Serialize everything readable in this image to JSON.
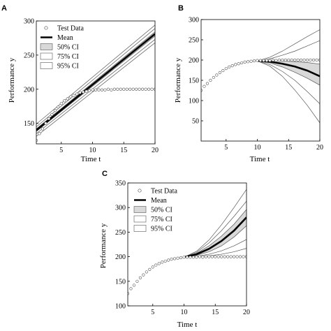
{
  "chart_data": [
    {
      "panel": "A",
      "type": "line",
      "xlabel": "Time t",
      "ylabel": "Performance y",
      "xlim": [
        1,
        20
      ],
      "ylim": [
        120,
        300
      ],
      "xticks": [
        5,
        10,
        15,
        20
      ],
      "yticks": [
        150,
        200,
        250,
        300
      ],
      "legend": {
        "placement": "top-left",
        "entries": [
          "Test Data",
          "Mean",
          "50% CI",
          "75% CI",
          "95% CI"
        ]
      },
      "test_data": {
        "x": [
          1,
          1.5,
          2,
          2.5,
          3,
          3.5,
          4,
          4.5,
          5,
          5.5,
          6,
          6.5,
          7,
          7.5,
          8,
          8.5,
          9,
          9.5,
          10,
          10.5,
          11,
          11.5,
          12,
          12.5,
          13,
          13.5,
          14,
          14.5,
          15,
          15.5,
          16,
          16.5,
          17,
          17.5,
          18,
          18.5,
          19,
          19.5,
          20
        ],
        "y": [
          125,
          135,
          142,
          150,
          157,
          163,
          169,
          174,
          179,
          183,
          186,
          189,
          191,
          193,
          195,
          196,
          197,
          198,
          199,
          199,
          199,
          199,
          199,
          200,
          199,
          200,
          200,
          200,
          200,
          200,
          200,
          200,
          200,
          200,
          200,
          200,
          200,
          200,
          200
        ]
      },
      "mean": {
        "x": [
          1,
          20
        ],
        "y": [
          140,
          281
        ]
      },
      "ci": [
        {
          "name": "50% CI",
          "x": [
            1,
            20
          ],
          "lower": [
            138,
            278
          ],
          "upper": [
            142,
            284
          ]
        },
        {
          "name": "75% CI",
          "x": [
            1,
            20
          ],
          "lower": [
            135,
            273
          ],
          "upper": [
            145,
            289
          ]
        },
        {
          "name": "95% CI",
          "x": [
            1,
            20
          ],
          "lower": [
            131,
            268
          ],
          "upper": [
            149,
            294
          ]
        }
      ]
    },
    {
      "panel": "B",
      "type": "line",
      "xlabel": "Time t",
      "ylabel": "Performance y",
      "xlim": [
        1,
        20
      ],
      "ylim": [
        0,
        300
      ],
      "xticks": [
        5,
        10,
        15,
        20
      ],
      "yticks": [
        50,
        100,
        150,
        200,
        250,
        300
      ],
      "test_data": {
        "x": [
          1,
          1.5,
          2,
          2.5,
          3,
          3.5,
          4,
          4.5,
          5,
          5.5,
          6,
          6.5,
          7,
          7.5,
          8,
          8.5,
          9,
          9.5,
          10,
          10.5,
          11,
          11.5,
          12,
          12.5,
          13,
          13.5,
          14,
          14.5,
          15,
          15.5,
          16,
          16.5,
          17,
          17.5,
          18,
          18.5,
          19,
          19.5,
          20
        ],
        "y": [
          125,
          135,
          142,
          150,
          157,
          163,
          169,
          174,
          179,
          183,
          186,
          189,
          191,
          193,
          195,
          196,
          197,
          198,
          199,
          199,
          199,
          199,
          199,
          200,
          199,
          200,
          200,
          200,
          200,
          200,
          200,
          200,
          200,
          200,
          200,
          200,
          200,
          200,
          200
        ]
      },
      "mean": {
        "x": [
          10,
          12,
          14,
          16,
          18,
          20
        ],
        "y": [
          198,
          196,
          191,
          184,
          174,
          160
        ]
      },
      "ci": [
        {
          "name": "50% CI",
          "x": [
            10,
            12,
            14,
            16,
            18,
            20
          ],
          "lower": [
            198,
            193,
            183,
            170,
            155,
            138
          ],
          "upper": [
            198,
            199,
            198,
            196,
            194,
            190
          ]
        },
        {
          "name": "75% CI",
          "x": [
            10,
            12,
            14,
            16,
            18,
            20
          ],
          "lower": [
            198,
            189,
            172,
            150,
            122,
            92
          ],
          "upper": [
            198,
            203,
            212,
            222,
            235,
            248
          ]
        },
        {
          "name": "95% CI",
          "x": [
            10,
            12,
            14,
            16,
            18,
            20
          ],
          "lower": [
            198,
            185,
            160,
            126,
            88,
            45
          ],
          "upper": [
            198,
            207,
            222,
            240,
            258,
            275
          ]
        }
      ]
    },
    {
      "panel": "C",
      "type": "line",
      "xlabel": "Time t",
      "ylabel": "Performance y",
      "xlim": [
        1,
        20
      ],
      "ylim": [
        100,
        350
      ],
      "xticks": [
        5,
        10,
        15,
        20
      ],
      "yticks": [
        100,
        150,
        200,
        250,
        300,
        350
      ],
      "legend": {
        "placement": "top-left",
        "entries": [
          "Test Data",
          "Mean",
          "50% CI",
          "75% CI",
          "95% CI"
        ]
      },
      "test_data": {
        "x": [
          1,
          1.5,
          2,
          2.5,
          3,
          3.5,
          4,
          4.5,
          5,
          5.5,
          6,
          6.5,
          7,
          7.5,
          8,
          8.5,
          9,
          9.5,
          10,
          10.5,
          11,
          11.5,
          12,
          12.5,
          13,
          13.5,
          14,
          14.5,
          15,
          15.5,
          16,
          16.5,
          17,
          17.5,
          18,
          18.5,
          19,
          19.5,
          20
        ],
        "y": [
          125,
          135,
          142,
          150,
          157,
          163,
          169,
          174,
          179,
          183,
          186,
          189,
          191,
          193,
          195,
          196,
          197,
          198,
          199,
          199,
          199,
          199,
          199,
          200,
          199,
          200,
          200,
          200,
          200,
          200,
          200,
          200,
          200,
          200,
          200,
          200,
          200,
          200,
          200
        ]
      },
      "mean": {
        "x": [
          10,
          12,
          14,
          16,
          18,
          20
        ],
        "y": [
          199,
          205,
          216,
          232,
          253,
          280
        ]
      },
      "ci": [
        {
          "name": "50% CI",
          "x": [
            10,
            12,
            14,
            16,
            18,
            20
          ],
          "lower": [
            199,
            203,
            210,
            222,
            240,
            263
          ],
          "upper": [
            199,
            207,
            222,
            242,
            266,
            296
          ]
        },
        {
          "name": "75% CI",
          "x": [
            10,
            12,
            14,
            16,
            18,
            20
          ],
          "lower": [
            199,
            201,
            205,
            212,
            222,
            235
          ],
          "upper": [
            199,
            209,
            228,
            253,
            282,
            313
          ]
        },
        {
          "name": "95% CI",
          "x": [
            10,
            12,
            14,
            16,
            18,
            20
          ],
          "lower": [
            199,
            200,
            202,
            205,
            210,
            217
          ],
          "upper": [
            199,
            211,
            234,
            265,
            300,
            337
          ]
        }
      ]
    }
  ],
  "styles": {
    "ci50_fill": "#d9d9d9",
    "ci_line": "#555555",
    "mean_line": "#000000",
    "marker_stroke": "#555555",
    "axis_color": "#000000"
  }
}
